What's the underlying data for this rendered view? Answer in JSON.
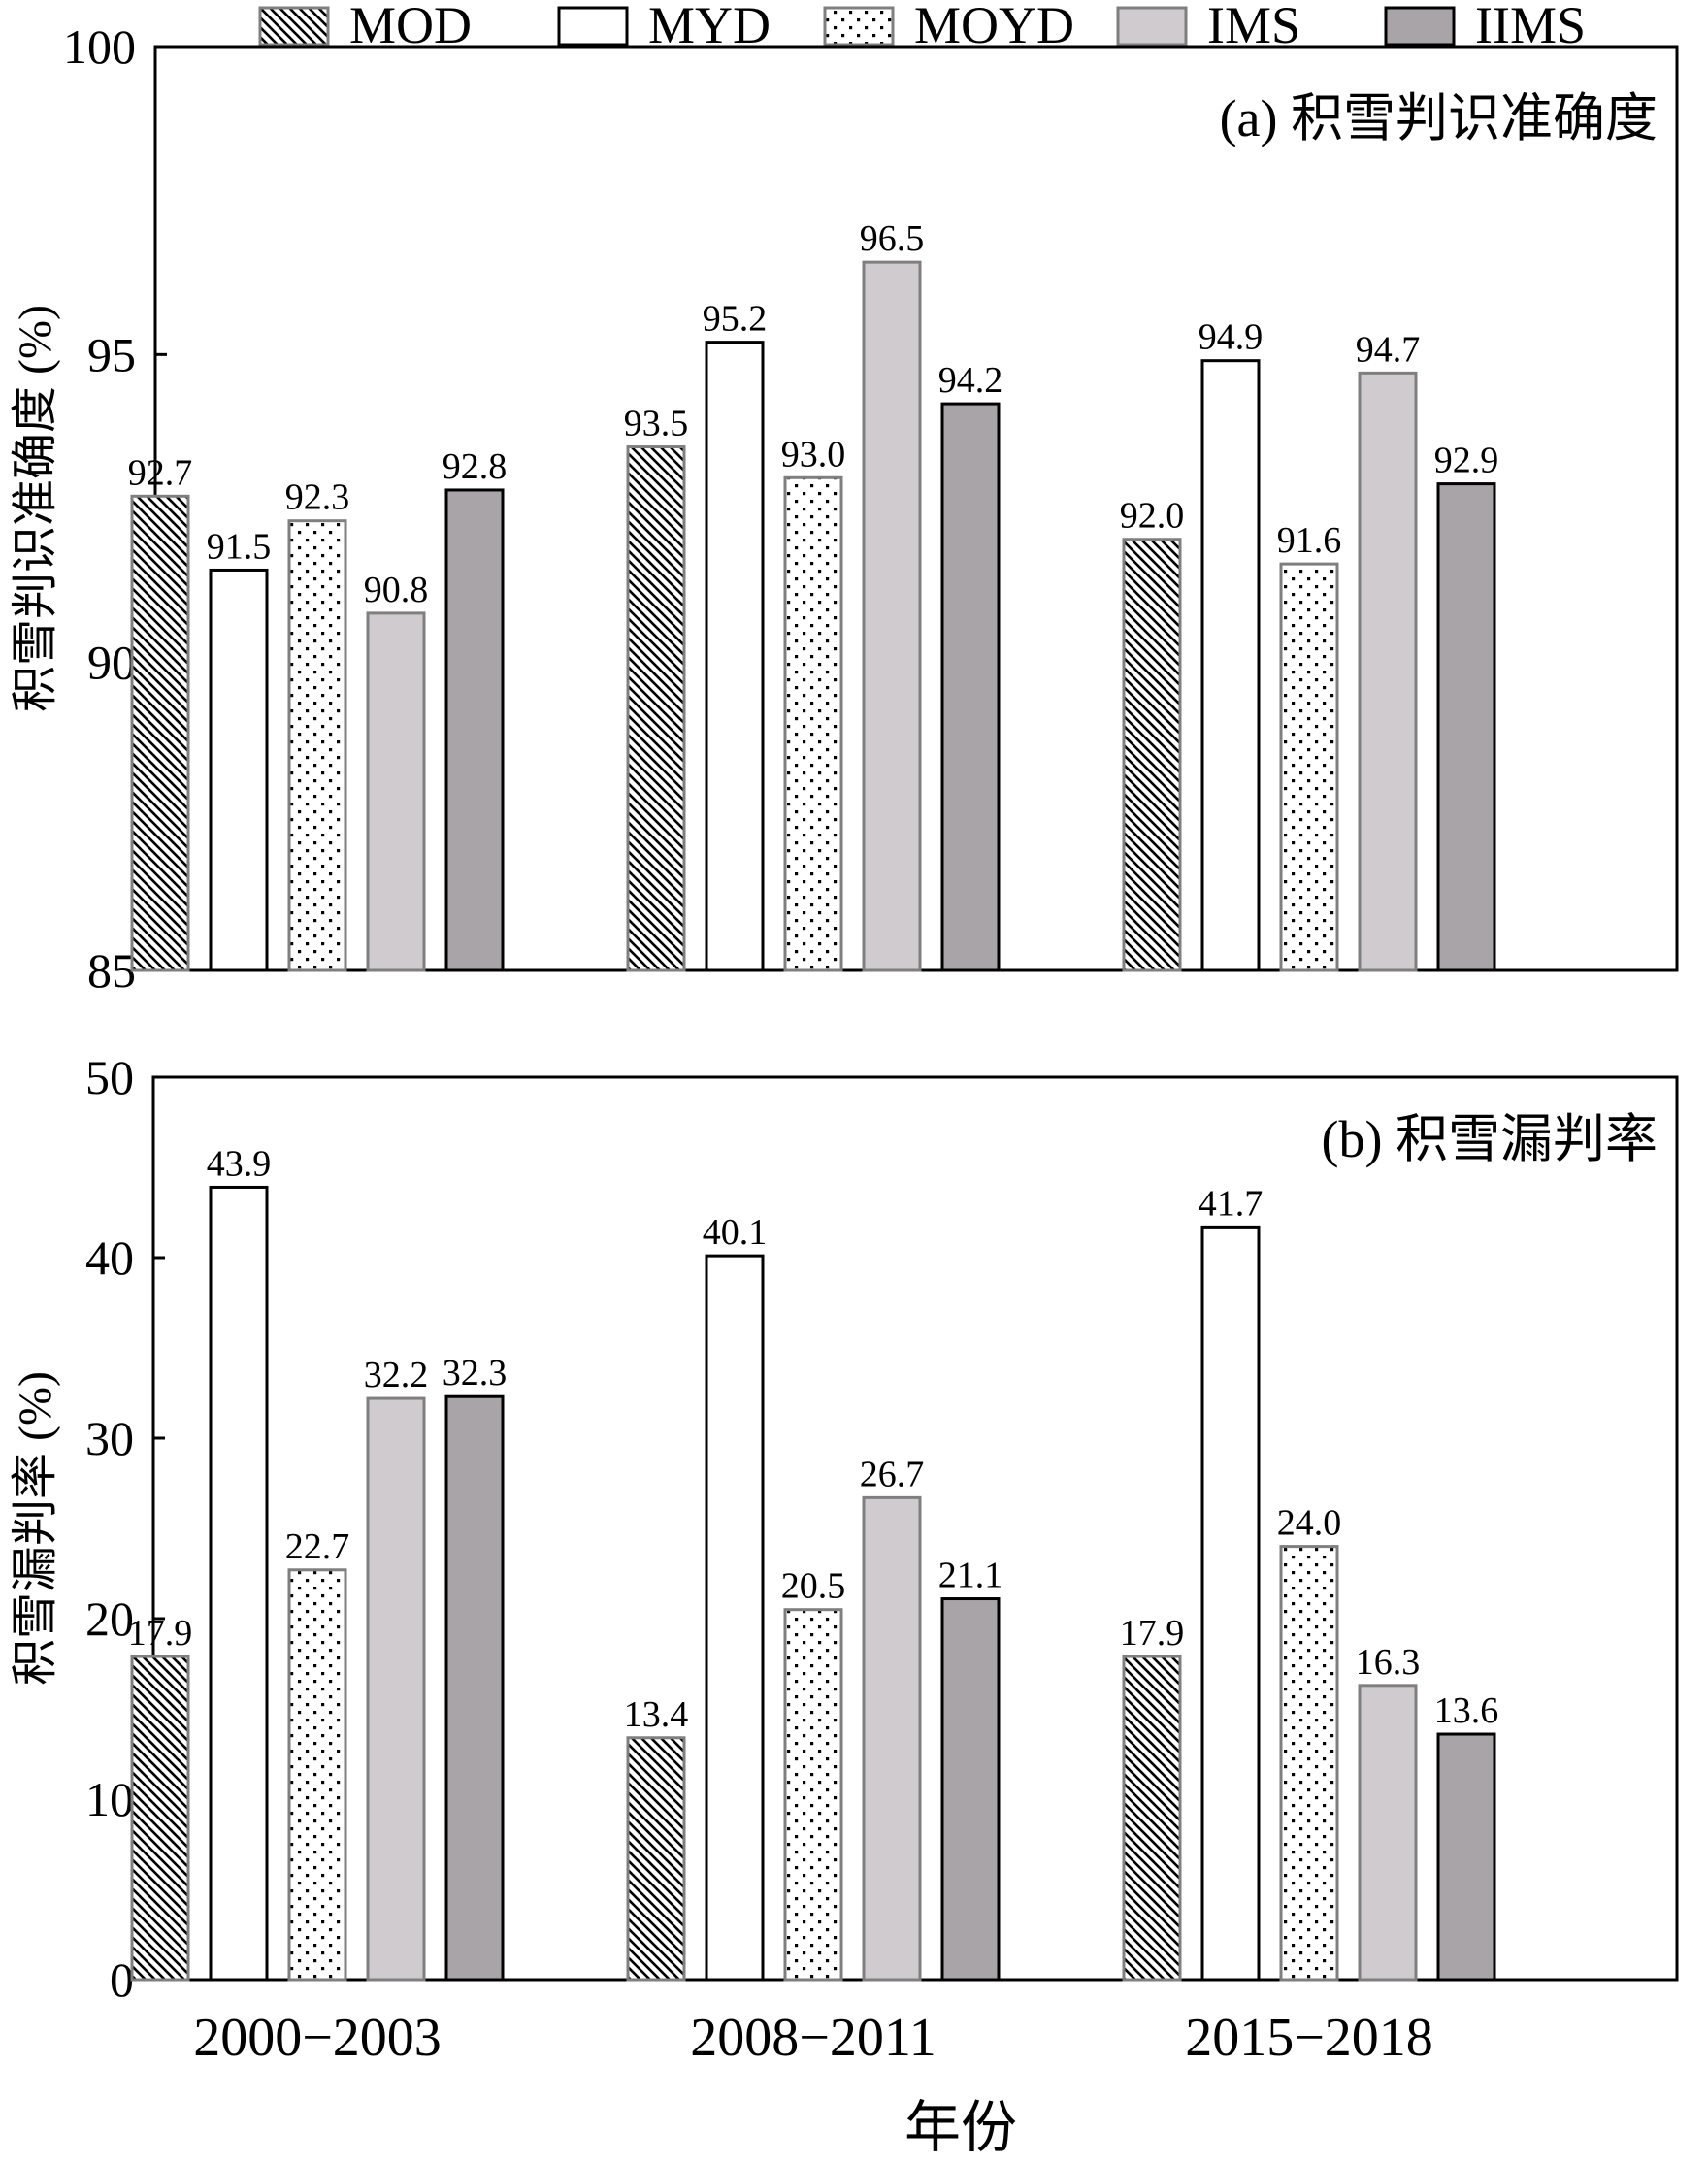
{
  "legend": {
    "items": [
      {
        "name": "MOD",
        "pattern": "hatch"
      },
      {
        "name": "MYD",
        "pattern": "white"
      },
      {
        "name": "MOYD",
        "pattern": "dots"
      },
      {
        "name": "IMS",
        "pattern": "light"
      },
      {
        "name": "IIMS",
        "pattern": "dark"
      }
    ]
  },
  "xlabel": "年份",
  "colors": {
    "light_gray": "#cfcbcf",
    "dark_gray": "#a8a4a8",
    "pattern_gray": "#7f7f7f"
  },
  "chart_data": [
    {
      "type": "bar",
      "title": "(a) 积雪判识准确度",
      "ylabel": "积雪判识准确度 (%)",
      "categories": [
        "2000−2003",
        "2008−2011",
        "2015−2018"
      ],
      "ylim": [
        85,
        100
      ],
      "yticks": [
        85,
        90,
        95,
        100
      ],
      "series": [
        {
          "name": "MOD",
          "values": [
            92.7,
            93.5,
            92.0
          ]
        },
        {
          "name": "MYD",
          "values": [
            91.5,
            95.2,
            94.9
          ]
        },
        {
          "name": "MOYD",
          "values": [
            92.3,
            93.0,
            91.6
          ]
        },
        {
          "name": "IMS",
          "values": [
            90.8,
            96.5,
            94.7
          ]
        },
        {
          "name": "IIMS",
          "values": [
            92.8,
            94.2,
            92.9
          ]
        }
      ],
      "data_labels": [
        [
          "92.7",
          "91.5",
          "92.3",
          "90.8",
          "92.8"
        ],
        [
          "93.5",
          "95.2",
          "93.0",
          "96.5",
          "94.2"
        ],
        [
          "92.0",
          "94.9",
          "91.6",
          "94.7",
          "92.9"
        ]
      ]
    },
    {
      "type": "bar",
      "title": "(b) 积雪漏判率",
      "ylabel": "积雪漏判率 (%)",
      "categories": [
        "2000−2003",
        "2008−2011",
        "2015−2018"
      ],
      "ylim": [
        0,
        50
      ],
      "yticks": [
        0,
        10,
        20,
        30,
        40,
        50
      ],
      "series": [
        {
          "name": "MOD",
          "values": [
            17.9,
            13.4,
            17.9
          ]
        },
        {
          "name": "MYD",
          "values": [
            43.9,
            40.1,
            41.7
          ]
        },
        {
          "name": "MOYD",
          "values": [
            22.7,
            20.5,
            24.0
          ]
        },
        {
          "name": "IMS",
          "values": [
            32.2,
            26.7,
            16.3
          ]
        },
        {
          "name": "IIMS",
          "values": [
            32.3,
            21.1,
            13.6
          ]
        }
      ],
      "data_labels": [
        [
          "17.9",
          "43.9",
          "22.7",
          "32.2",
          "32.3"
        ],
        [
          "13.4",
          "40.1",
          "20.5",
          "26.7",
          "21.1"
        ],
        [
          "17.9",
          "41.7",
          "24.0",
          "16.3",
          "13.6"
        ]
      ]
    }
  ]
}
